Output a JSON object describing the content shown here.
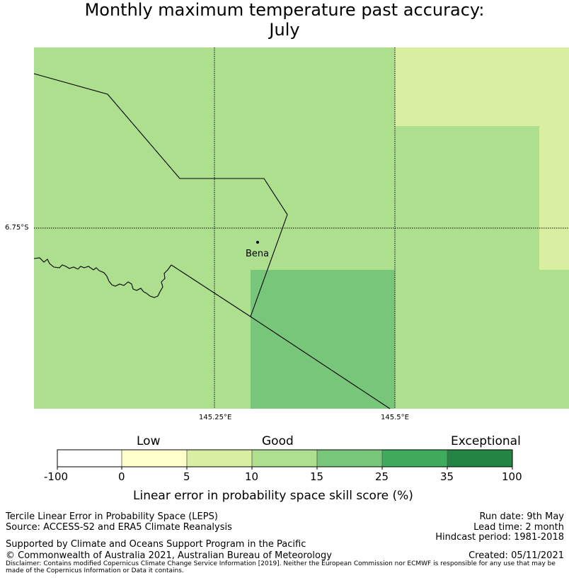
{
  "title_line1": "Monthly maximum temperature past accuracy:",
  "title_line2": "July",
  "map": {
    "place_label": "Bena",
    "lon_ticks": [
      "145.25°E",
      "145.5°E"
    ],
    "lat_ticks": [
      "6.75°S"
    ],
    "colors": {
      "good_5_10": "#d8eea0",
      "good_10_15": "#addf8e",
      "good_15_25": "#78c67a",
      "boundary": "#000000"
    }
  },
  "colorbar": {
    "categories": [
      "Low",
      "Good",
      "Exceptional"
    ],
    "ticks": [
      "-100",
      "0",
      "5",
      "10",
      "15",
      "25",
      "35",
      "100"
    ],
    "colors": [
      "#ffffff",
      "#ffffcc",
      "#d8eea0",
      "#addf8e",
      "#78c67a",
      "#40ab5c",
      "#238443"
    ],
    "label": "Linear error in probability space skill score (%)"
  },
  "footer": {
    "left1": "Tercile Linear Error in Probability Space (LEPS)",
    "left2": "Source: ACCESS-S2 and ERA5 Climate Reanalysis",
    "left3": "Supported by Climate and Oceans Support Program in the Pacific",
    "left4": "© Commonwealth of Australia 2021, Australian Bureau of Meteorology",
    "right1": "Run date: 9th May",
    "right2": "Lead time: 2 month",
    "right3": "Hindcast period: 1981-2018",
    "right4": "Created: 05/11/2021",
    "disclaimer": "Disclaimer: Contains modified Copernicus Climate Change Service Information [2019]. Neither the European Commission nor ECMWF is responsible for any use that may be made of the Copernicus Information or Data it contains."
  }
}
